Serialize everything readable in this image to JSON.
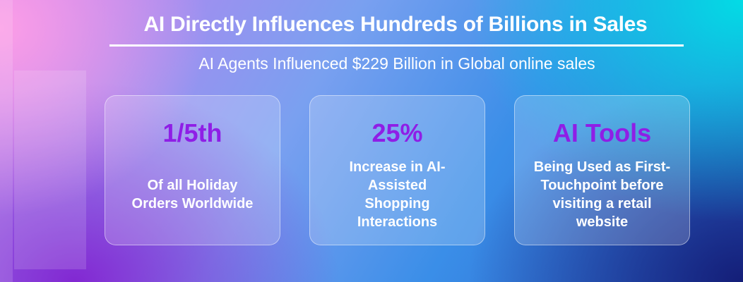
{
  "header": {
    "title": "AI Directly Influences Hundreds of Billions in Sales",
    "subtitle": "AI Agents Influenced $229 Billion in Global online sales"
  },
  "cards": [
    {
      "stat": "1/5th",
      "description": "Of all Holiday Orders Worldwide"
    },
    {
      "stat": "25%",
      "description": "Increase in AI-Assisted Shopping Interactions"
    },
    {
      "stat": "AI Tools",
      "description": "Being Used as First-Touchpoint before visiting a retail website"
    }
  ]
}
